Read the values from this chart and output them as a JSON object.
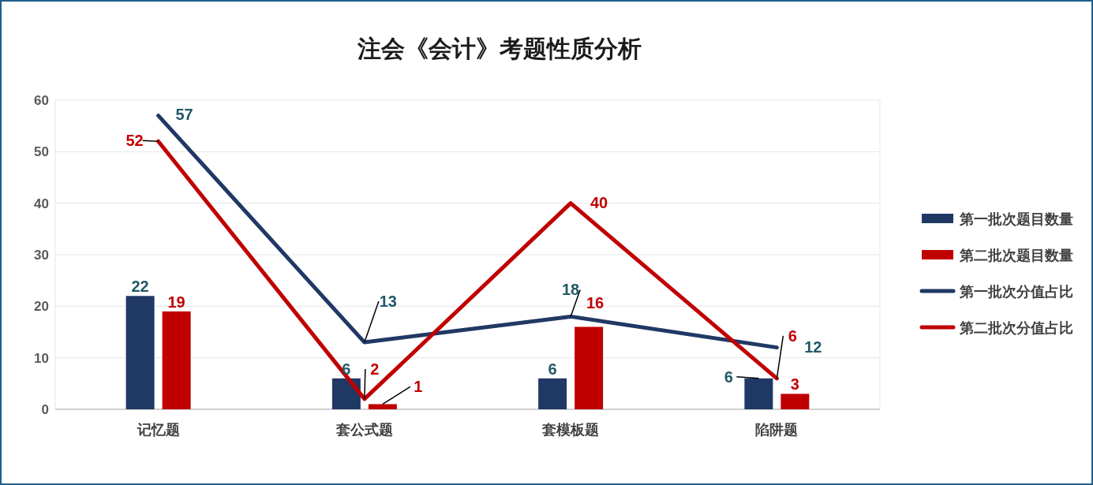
{
  "chart_data": {
    "type": "bar",
    "title": "注会《会计》考题性质分析",
    "categories": [
      "记忆题",
      "套公式题",
      "套模板题",
      "陷阱题"
    ],
    "series": [
      {
        "name": "第一批次题目数量",
        "color": "#203864",
        "values": [
          22,
          6,
          6,
          6
        ]
      },
      {
        "name": "第二批次题目数量",
        "color": "#c00000",
        "values": [
          19,
          1,
          16,
          3
        ]
      },
      {
        "name": "第一批次分值占比",
        "type": "line",
        "color": "#203864",
        "values": [
          57,
          13,
          18,
          12
        ]
      },
      {
        "name": "第二批次分值占比",
        "type": "line",
        "color": "#c00000",
        "values": [
          52,
          2,
          40,
          6
        ]
      }
    ],
    "ylim": [
      0,
      60
    ],
    "yticks": [
      0,
      10,
      20,
      30,
      40,
      50,
      60
    ],
    "grid": "y",
    "legend": "right",
    "data_labels": true,
    "marker": "none",
    "line_style": "solid"
  }
}
